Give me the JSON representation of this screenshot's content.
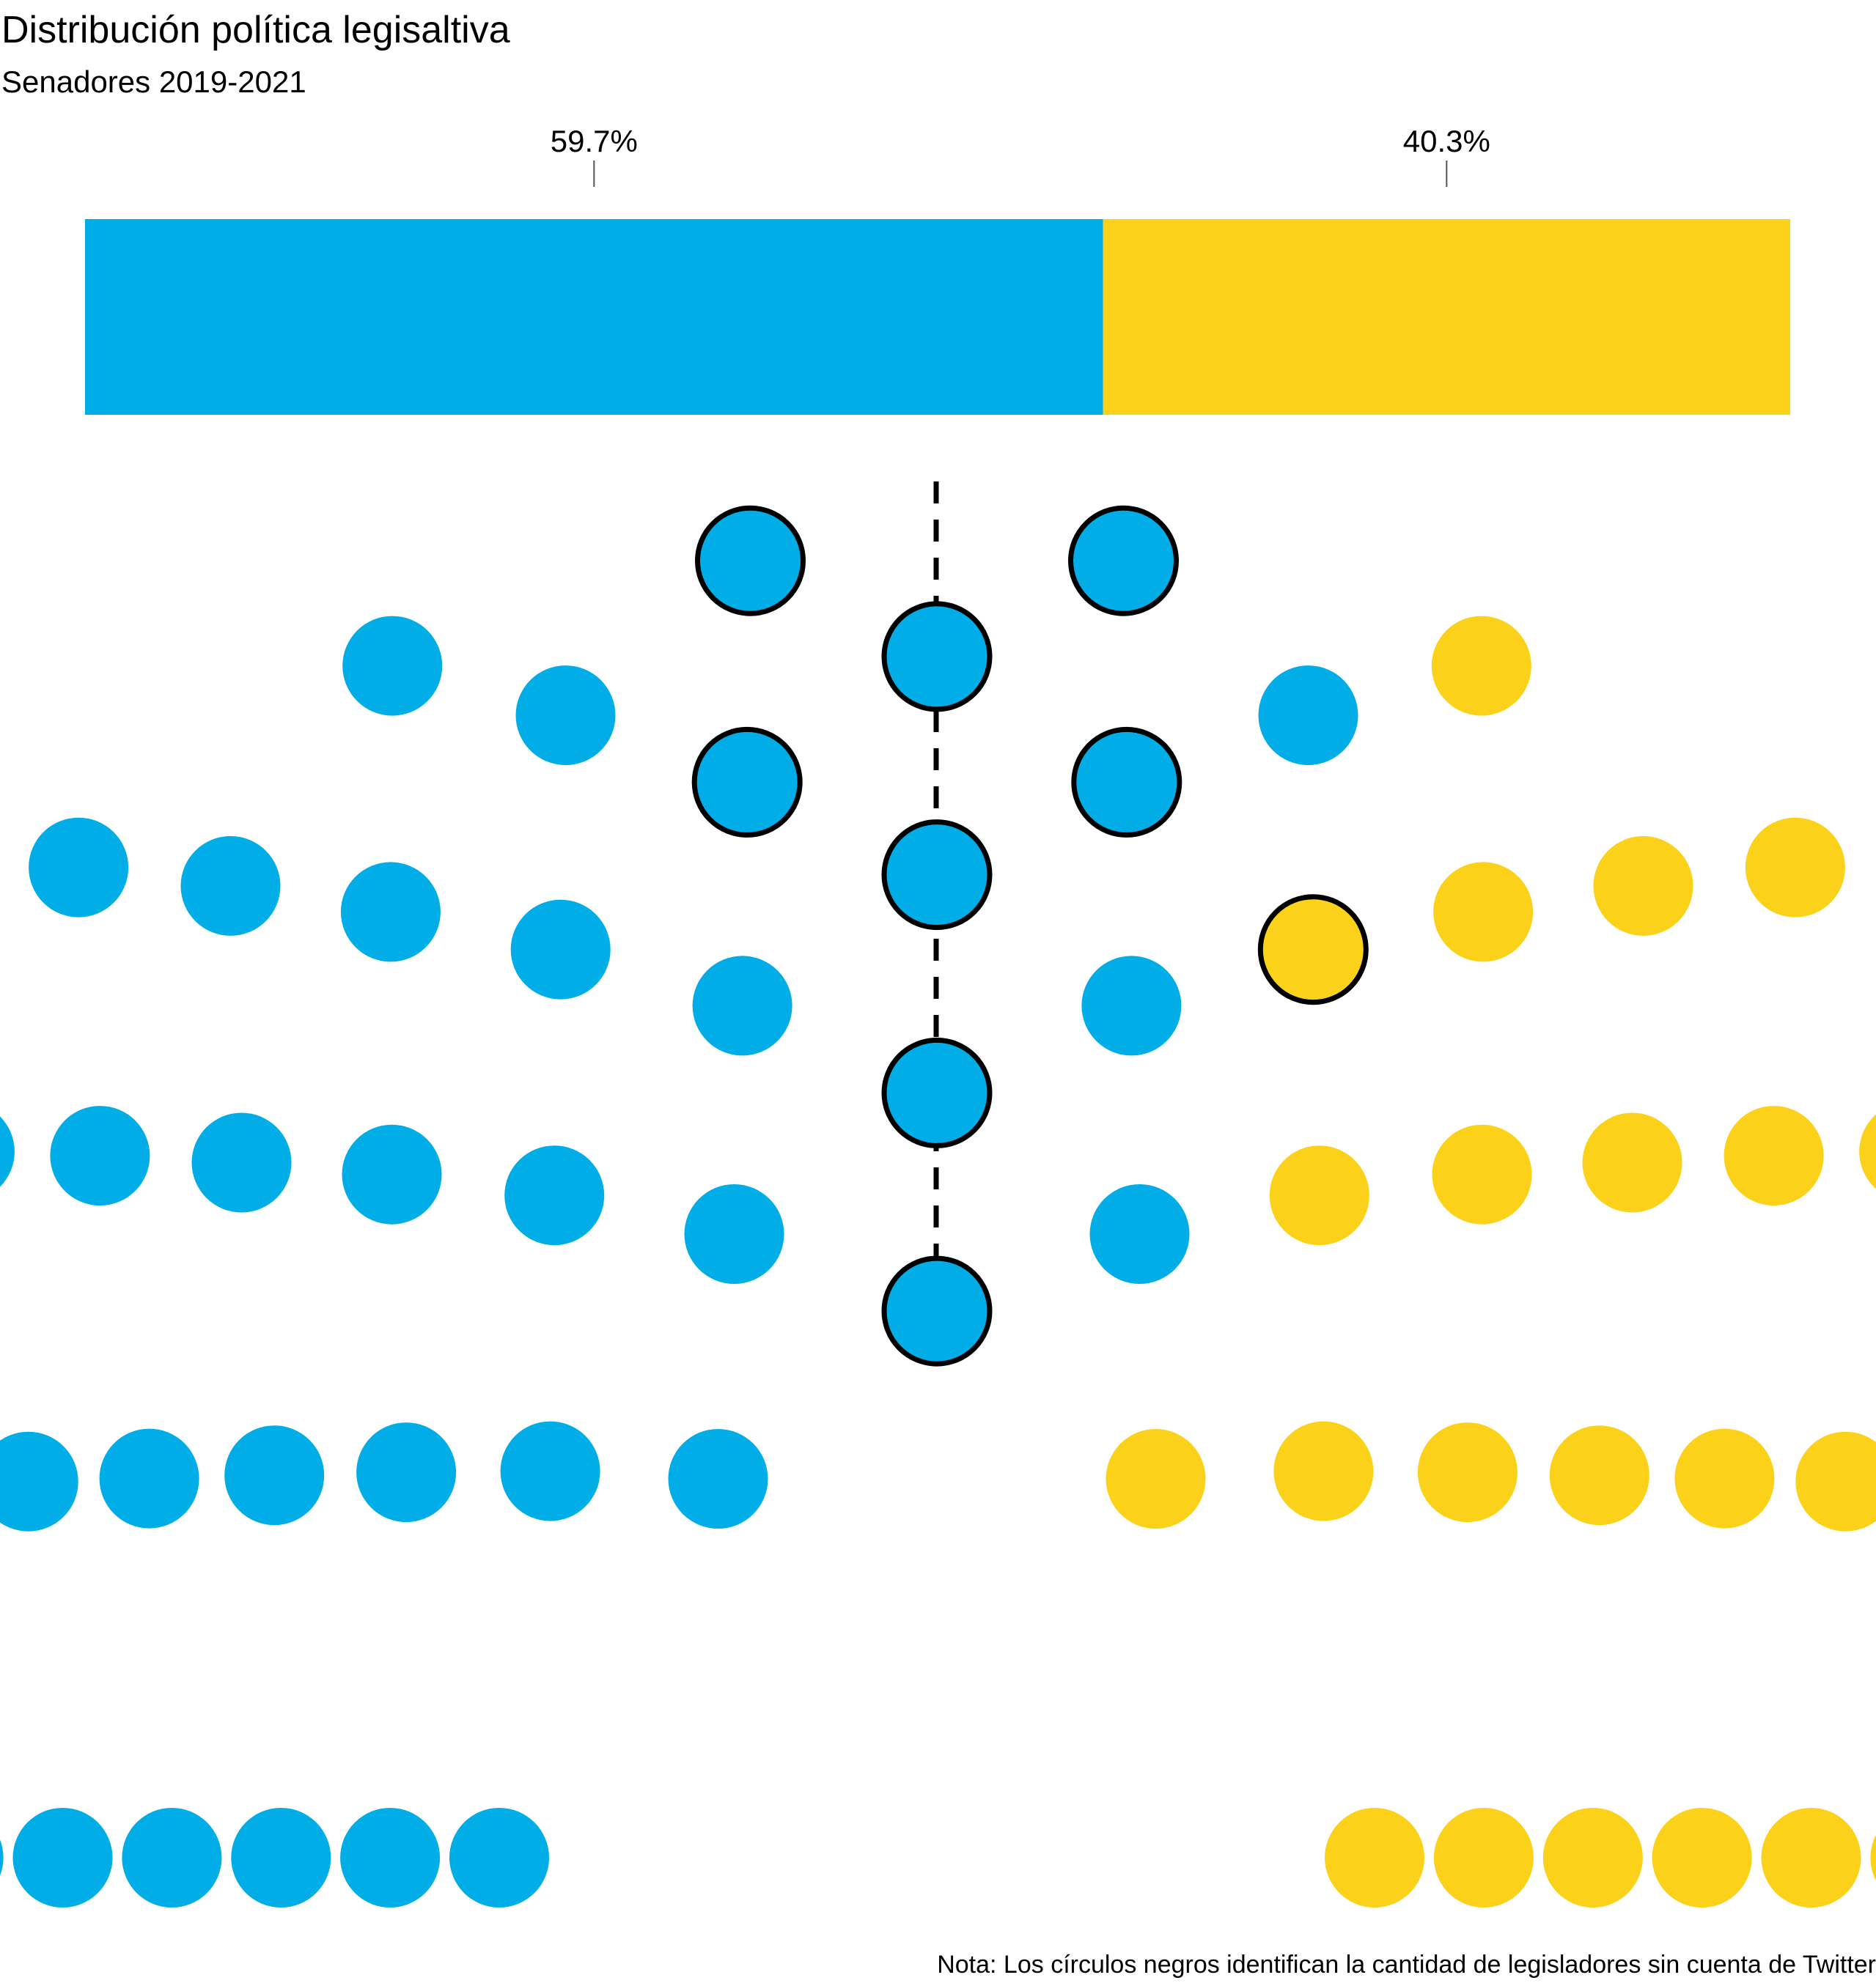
{
  "title": "Distribución política legisaltiva",
  "subtitle": "Senadores 2019-2021",
  "note": "Nota: Los círculos negros identifican la cantidad de legisladores sin cuenta de Twitter",
  "colors": {
    "blue": "#00ADE6",
    "yellow": "#FBD11A",
    "outline": "#000000"
  },
  "chart_data": [
    {
      "type": "bar",
      "orientation": "horizontal-stacked",
      "values": [
        59.7,
        40.3
      ],
      "labels": [
        "59.7%",
        "40.3%"
      ],
      "unit": "%"
    },
    {
      "type": "parliament",
      "total_seats": 72,
      "rows": 9,
      "majority_line": "dashed vertical",
      "groups": [
        {
          "color": "blue",
          "seats": 43,
          "seats_outlined": 8
        },
        {
          "color": "yellow",
          "seats": 29,
          "seats_outlined": 1
        }
      ]
    }
  ]
}
